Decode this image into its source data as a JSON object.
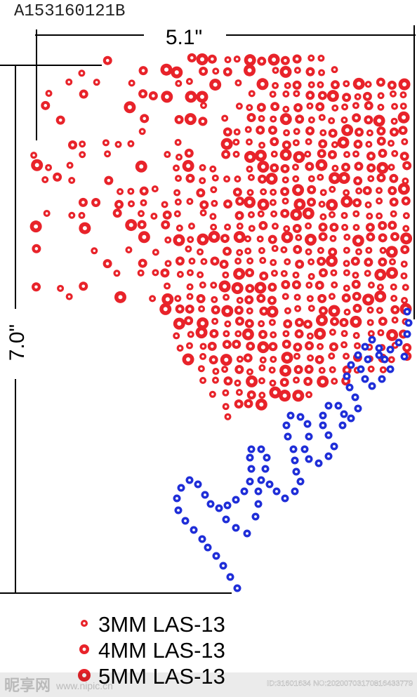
{
  "header": {
    "code": "A153160121B"
  },
  "dimensions": {
    "width": "5.1\"",
    "height": "7.0\""
  },
  "legend": [
    {
      "label": "3MM LAS-13"
    },
    {
      "label": "4MM LAS-13"
    },
    {
      "label": "5MM LAS-13"
    }
  ],
  "watermark": {
    "site": "昵享网",
    "url": "www.nipic.cn",
    "id": "ID:31601634 NO:20200703170816433779"
  }
}
